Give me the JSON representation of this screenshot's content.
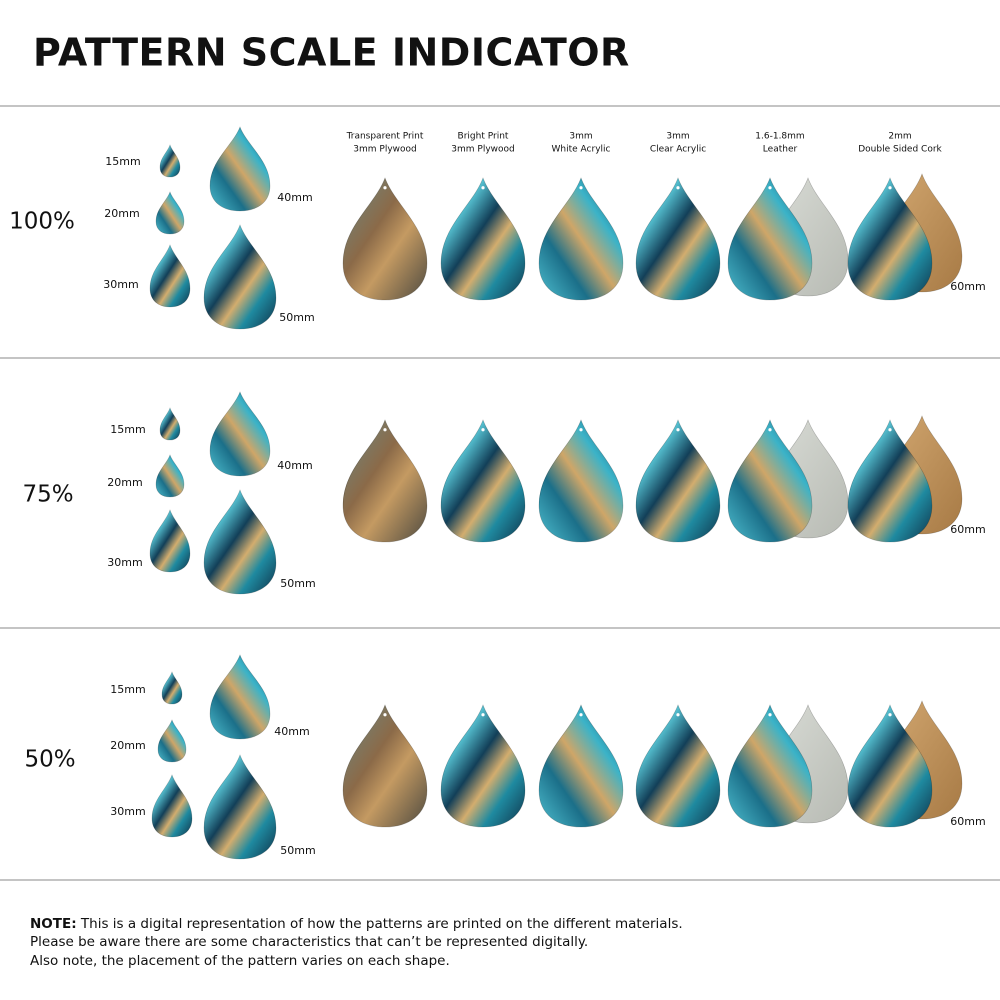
{
  "title": "PATTERN SCALE INDICATOR",
  "materials": [
    {
      "line1": "Transparent Print",
      "line2": "3mm Plywood"
    },
    {
      "line1": "Bright Print",
      "line2": "3mm Plywood"
    },
    {
      "line1": "3mm",
      "line2": "White Acrylic"
    },
    {
      "line1": "3mm",
      "line2": "Clear Acrylic"
    },
    {
      "line1": "1.6-1.8mm",
      "line2": "Leather"
    },
    {
      "line1": "2mm",
      "line2": "Double Sided Cork"
    }
  ],
  "rows": [
    {
      "scale": "100%",
      "sizes": [
        "15mm",
        "20mm",
        "30mm",
        "40mm",
        "50mm"
      ],
      "big_size": "60mm"
    },
    {
      "scale": "75%",
      "sizes": [
        "15mm",
        "20mm",
        "30mm",
        "40mm",
        "50mm"
      ],
      "big_size": "60mm"
    },
    {
      "scale": "50%",
      "sizes": [
        "15mm",
        "20mm",
        "30mm",
        "40mm",
        "50mm"
      ],
      "big_size": "60mm"
    }
  ],
  "note": {
    "label": "NOTE:",
    "lines": [
      "This is a digital representation of how the patterns are printed on the different materials.",
      "Please be aware there are some characteristics that can’t be represented digitally.",
      "Also note, the placement of the pattern varies on each shape."
    ]
  }
}
